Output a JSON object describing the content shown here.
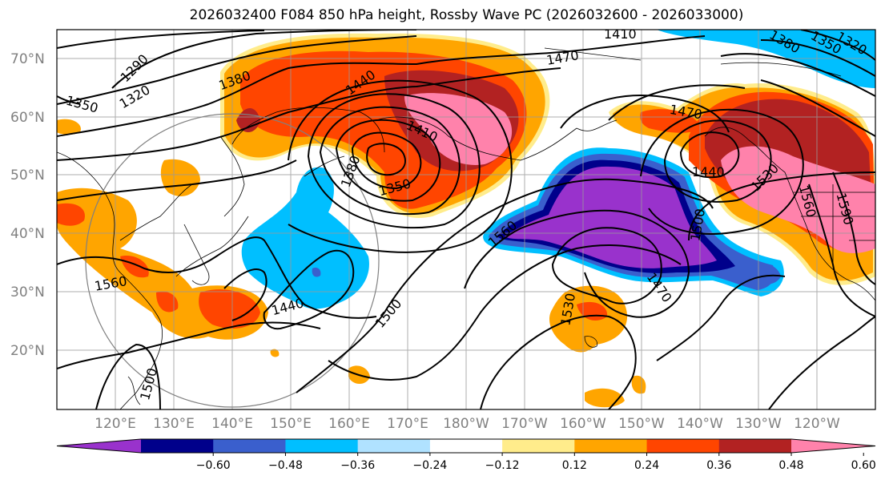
{
  "title": "2026032400 F084 850 hPa height, Rossby Wave PC (2026032600 - 2026033000)",
  "lat_labels": [
    "70°N",
    "60°N",
    "50°N",
    "40°N",
    "30°N",
    "20°N"
  ],
  "lon_labels": [
    "120°E",
    "130°E",
    "140°E",
    "150°E",
    "160°E",
    "170°E",
    "180°W",
    "170°W",
    "160°W",
    "150°W",
    "140°W",
    "130°W",
    "120°W"
  ],
  "contour_labels": [
    "1290",
    "1320",
    "1350",
    "1380",
    "1410",
    "1440",
    "1470",
    "1380",
    "1410",
    "1350",
    "1440",
    "1500",
    "1560",
    "1560",
    "1530",
    "1500",
    "1470",
    "1470",
    "1440",
    "1530",
    "1560",
    "1590",
    "1380",
    "1350",
    "1320",
    "1500"
  ],
  "colorbar": {
    "ticks": [
      "−0.60",
      "−0.48",
      "−0.36",
      "−0.24",
      "−0.12",
      "0.12",
      "0.24",
      "0.36",
      "0.48",
      "0.60"
    ],
    "colors": [
      "#9932cc",
      "#00008b",
      "#3a5fcd",
      "#00bfff",
      "#b0e2ff",
      "#ffffff",
      "#ffec8b",
      "#ffa500",
      "#ff4500",
      "#b22222",
      "#ff82ab"
    ]
  }
}
